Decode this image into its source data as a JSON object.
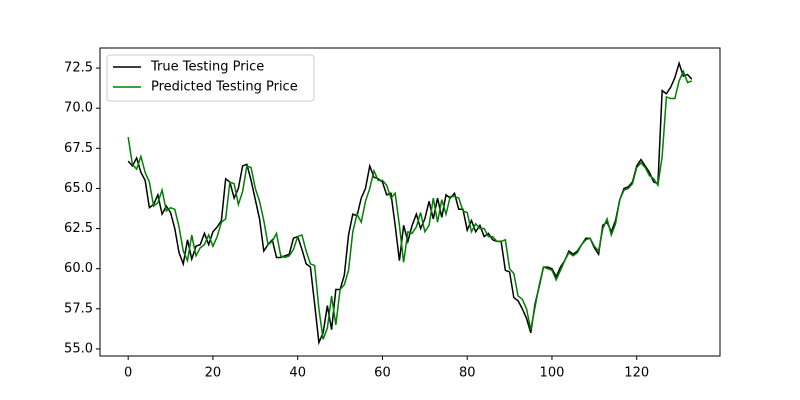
{
  "chart_data": {
    "type": "line",
    "x": [
      0,
      1,
      2,
      3,
      4,
      5,
      6,
      7,
      8,
      9,
      10,
      11,
      12,
      13,
      14,
      15,
      16,
      17,
      18,
      19,
      20,
      21,
      22,
      23,
      24,
      25,
      26,
      27,
      28,
      29,
      30,
      31,
      32,
      33,
      34,
      35,
      36,
      37,
      38,
      39,
      40,
      41,
      42,
      43,
      44,
      45,
      46,
      47,
      48,
      49,
      50,
      51,
      52,
      53,
      54,
      55,
      56,
      57,
      58,
      59,
      60,
      61,
      62,
      63,
      64,
      65,
      66,
      67,
      68,
      69,
      70,
      71,
      72,
      73,
      74,
      75,
      76,
      77,
      78,
      79,
      80,
      81,
      82,
      83,
      84,
      85,
      86,
      87,
      88,
      89,
      90,
      91,
      92,
      93,
      94,
      95,
      96,
      97,
      98,
      99,
      100,
      101,
      102,
      103,
      104,
      105,
      106,
      107,
      108,
      109,
      110,
      111,
      112,
      113,
      114,
      115,
      116,
      117,
      118,
      119,
      120,
      121,
      122,
      123,
      124,
      125,
      126,
      127,
      128,
      129,
      130,
      131,
      132,
      133
    ],
    "series": [
      {
        "name": "True Testing Price",
        "color": "#000000",
        "values": [
          66.7,
          66.4,
          66.9,
          66.0,
          65.5,
          63.8,
          64.0,
          64.6,
          63.4,
          63.9,
          63.5,
          62.5,
          61.0,
          60.3,
          61.8,
          60.6,
          61.4,
          61.5,
          62.2,
          61.5,
          62.3,
          62.6,
          63.0,
          65.6,
          65.4,
          64.4,
          65.0,
          66.4,
          66.5,
          65.5,
          64.3,
          63.1,
          61.1,
          61.5,
          61.8,
          60.7,
          60.7,
          60.8,
          60.9,
          61.9,
          62.0,
          61.2,
          60.3,
          60.1,
          57.8,
          55.4,
          56.0,
          57.7,
          56.2,
          58.7,
          58.7,
          59.6,
          62.1,
          63.4,
          63.3,
          64.4,
          65.0,
          66.4,
          65.7,
          65.6,
          65.4,
          64.6,
          64.7,
          62.7,
          60.5,
          62.7,
          61.7,
          62.7,
          63.4,
          62.5,
          63.1,
          64.2,
          63.1,
          64.4,
          63.2,
          64.6,
          64.4,
          64.7,
          63.7,
          63.7,
          62.4,
          63.0,
          62.3,
          62.7,
          62.0,
          62.2,
          61.8,
          61.7,
          61.7,
          59.9,
          59.8,
          58.2,
          58.0,
          57.5,
          56.9,
          56.0,
          57.8,
          58.9,
          60.1,
          60.1,
          60.0,
          59.5,
          60.1,
          60.5,
          61.1,
          60.9,
          61.1,
          61.5,
          61.9,
          61.9,
          61.3,
          60.9,
          62.7,
          62.9,
          62.3,
          63.0,
          64.3,
          65.0,
          65.1,
          65.4,
          66.4,
          66.8,
          66.4,
          66.0,
          65.4,
          65.3,
          71.1,
          70.9,
          71.3,
          71.9,
          72.8,
          72.0,
          72.1,
          71.8
        ]
      },
      {
        "name": "Predicted Testing Price",
        "color": "#008000",
        "values": [
          68.2,
          66.5,
          66.2,
          67.0,
          66.0,
          65.4,
          63.9,
          64.1,
          64.9,
          63.6,
          63.8,
          63.7,
          62.6,
          61.1,
          60.5,
          62.1,
          60.8,
          61.3,
          61.5,
          62.1,
          61.4,
          62.0,
          62.9,
          63.1,
          65.4,
          65.3,
          64.0,
          64.8,
          66.4,
          66.3,
          65.0,
          64.2,
          63.0,
          61.5,
          61.7,
          62.2,
          60.8,
          60.7,
          60.8,
          61.2,
          62.0,
          62.1,
          61.1,
          60.3,
          60.2,
          57.5,
          55.6,
          56.3,
          58.3,
          56.5,
          58.7,
          59.0,
          59.9,
          62.3,
          63.4,
          62.9,
          64.2,
          65.0,
          66.1,
          65.5,
          65.5,
          65.2,
          64.4,
          64.7,
          62.7,
          60.4,
          62.3,
          62.2,
          62.6,
          63.5,
          62.3,
          62.7,
          64.4,
          62.9,
          64.3,
          63.4,
          64.5,
          64.5,
          64.4,
          63.6,
          63.5,
          62.3,
          62.8,
          62.5,
          62.5,
          62.0,
          62.0,
          61.7,
          61.7,
          61.8,
          60.0,
          59.7,
          58.3,
          58.1,
          57.5,
          56.2,
          57.6,
          59.0,
          60.1,
          60.0,
          59.9,
          59.3,
          59.9,
          60.5,
          61.0,
          60.8,
          61.0,
          61.5,
          61.8,
          61.9,
          61.4,
          61.1,
          62.5,
          63.1,
          62.1,
          62.8,
          64.3,
          64.9,
          65.0,
          65.3,
          66.3,
          66.6,
          66.3,
          65.8,
          65.6,
          65.2,
          67.0,
          70.7,
          70.6,
          70.6,
          71.7,
          72.3,
          71.6,
          71.7
        ]
      }
    ],
    "xlim": [
      -6.65,
      139.65
    ],
    "xticks": [
      0,
      20,
      40,
      60,
      80,
      100,
      120
    ],
    "ylim": [
      54.56,
      73.75
    ],
    "yticks": [
      {
        "value": 55,
        "label": "55.0"
      },
      57.5,
      {
        "value": 60,
        "label": "60.0"
      },
      62.5,
      {
        "value": 65,
        "label": "65.0"
      },
      67.5,
      {
        "value": 70,
        "label": "70.0"
      },
      72.5
    ],
    "legend": "upper left",
    "grid": false
  }
}
